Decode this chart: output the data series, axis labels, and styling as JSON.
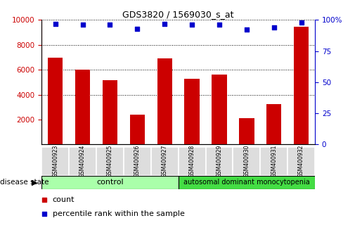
{
  "title": "GDS3820 / 1569030_s_at",
  "samples": [
    "GSM400923",
    "GSM400924",
    "GSM400925",
    "GSM400926",
    "GSM400927",
    "GSM400928",
    "GSM400929",
    "GSM400930",
    "GSM400931",
    "GSM400932"
  ],
  "counts": [
    6950,
    6020,
    5150,
    2380,
    6900,
    5300,
    5600,
    2100,
    3250,
    9450
  ],
  "percentiles": [
    97,
    96,
    96,
    93,
    97,
    96,
    96,
    92,
    94,
    98
  ],
  "bar_color": "#CC0000",
  "dot_color": "#0000CC",
  "ylim_left": [
    0,
    10000
  ],
  "ylim_right": [
    0,
    100
  ],
  "yticks_left": [
    2000,
    4000,
    6000,
    8000,
    10000
  ],
  "yticks_right": [
    0,
    25,
    50,
    75,
    100
  ],
  "grid_values": [
    4000,
    6000,
    8000,
    10000
  ],
  "tick_color_left": "#CC0000",
  "tick_color_right": "#0000CC",
  "title_fontsize": 9,
  "legend_count_label": "count",
  "legend_pct_label": "percentile rank within the sample",
  "disease_state_label": "disease state",
  "control_label": "control",
  "disease_label": "autosomal dominant monocytopenia",
  "control_color": "#aaffaa",
  "disease_color": "#44dd44",
  "n_control": 5,
  "n_disease": 5
}
